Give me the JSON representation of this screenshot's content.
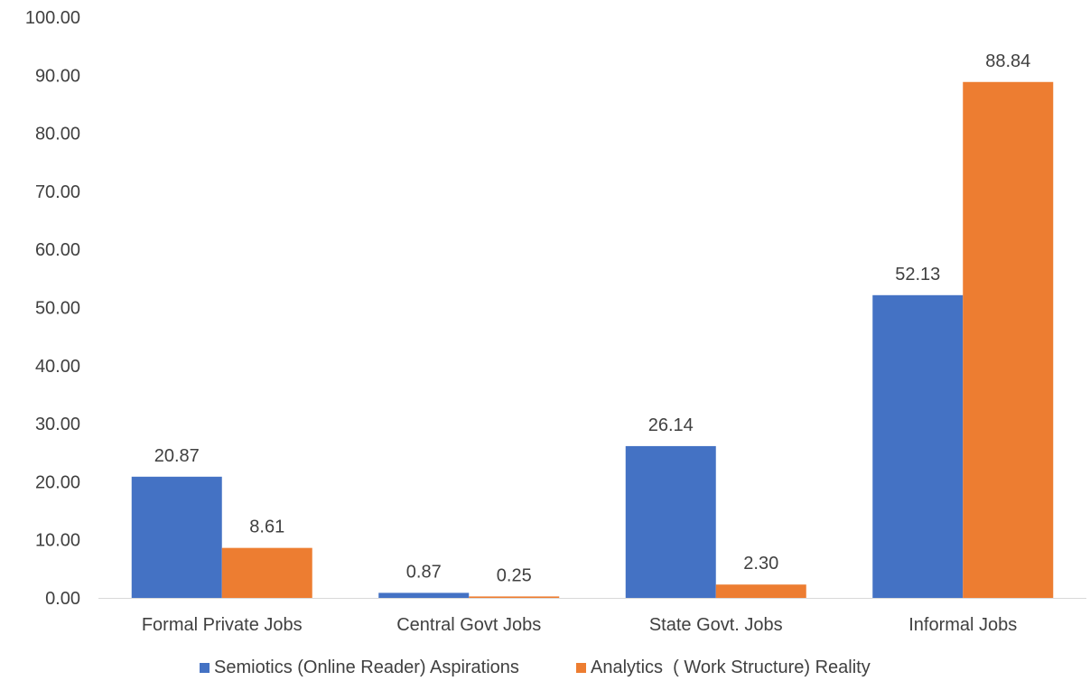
{
  "chart_data": {
    "type": "bar",
    "categories": [
      "Formal Private Jobs",
      "Central Govt Jobs",
      "State Govt. Jobs",
      "Informal Jobs"
    ],
    "series": [
      {
        "name": "Semiotics (Online Reader) Aspirations",
        "color": "#4472C4",
        "values": [
          20.87,
          0.87,
          26.14,
          52.13
        ],
        "labels": [
          "20.87",
          "0.87",
          "26.14",
          "52.13"
        ]
      },
      {
        "name": "Analytics  ( Work Structure) Reality",
        "color": "#ED7D31",
        "values": [
          8.61,
          0.25,
          2.3,
          88.84
        ],
        "labels": [
          "8.61",
          "0.25",
          "2.30",
          "88.84"
        ]
      }
    ],
    "y_ticks": [
      "0.00",
      "10.00",
      "20.00",
      "30.00",
      "40.00",
      "50.00",
      "60.00",
      "70.00",
      "80.00",
      "90.00",
      "100.00"
    ],
    "ylim": [
      0,
      100
    ],
    "grid": false,
    "legend_position": "bottom",
    "title": "",
    "xlabel": "",
    "ylabel": ""
  }
}
